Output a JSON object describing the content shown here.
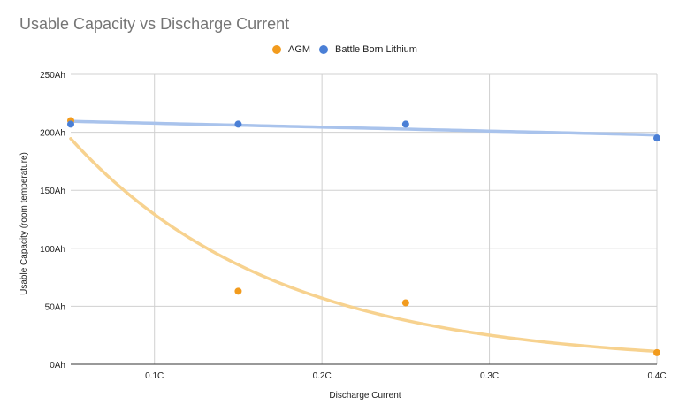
{
  "chart_data": {
    "type": "scatter",
    "title": "Usable Capacity vs Discharge Current",
    "xlabel": "Discharge Current",
    "ylabel": "Usable Capacity (room temperature)",
    "xlim": [
      0.05,
      0.4
    ],
    "ylim": [
      0,
      250
    ],
    "x_ticks": [
      {
        "value": 0.1,
        "label": "0.1C"
      },
      {
        "value": 0.2,
        "label": "0.2C"
      },
      {
        "value": 0.3,
        "label": "0.3C"
      },
      {
        "value": 0.4,
        "label": "0.4C"
      }
    ],
    "y_ticks": [
      {
        "value": 0,
        "label": "0Ah"
      },
      {
        "value": 50,
        "label": "50Ah"
      },
      {
        "value": 100,
        "label": "100Ah"
      },
      {
        "value": 150,
        "label": "150Ah"
      },
      {
        "value": 200,
        "label": "200Ah"
      },
      {
        "value": 250,
        "label": "250Ah"
      }
    ],
    "grid": true,
    "legend_position": "top",
    "series": [
      {
        "name": "AGM",
        "color": "#f29b1d",
        "trendline_color": "#f7d28f",
        "trendline": "exponential",
        "points": [
          {
            "x": 0.05,
            "y": 210
          },
          {
            "x": 0.15,
            "y": 63
          },
          {
            "x": 0.25,
            "y": 53
          },
          {
            "x": 0.4,
            "y": 10
          }
        ]
      },
      {
        "name": "Battle Born Lithium",
        "color": "#4a7fd6",
        "trendline_color": "#a9c3ec",
        "trendline": "linear",
        "points": [
          {
            "x": 0.05,
            "y": 207
          },
          {
            "x": 0.15,
            "y": 207
          },
          {
            "x": 0.25,
            "y": 207
          },
          {
            "x": 0.4,
            "y": 195
          }
        ]
      }
    ]
  }
}
